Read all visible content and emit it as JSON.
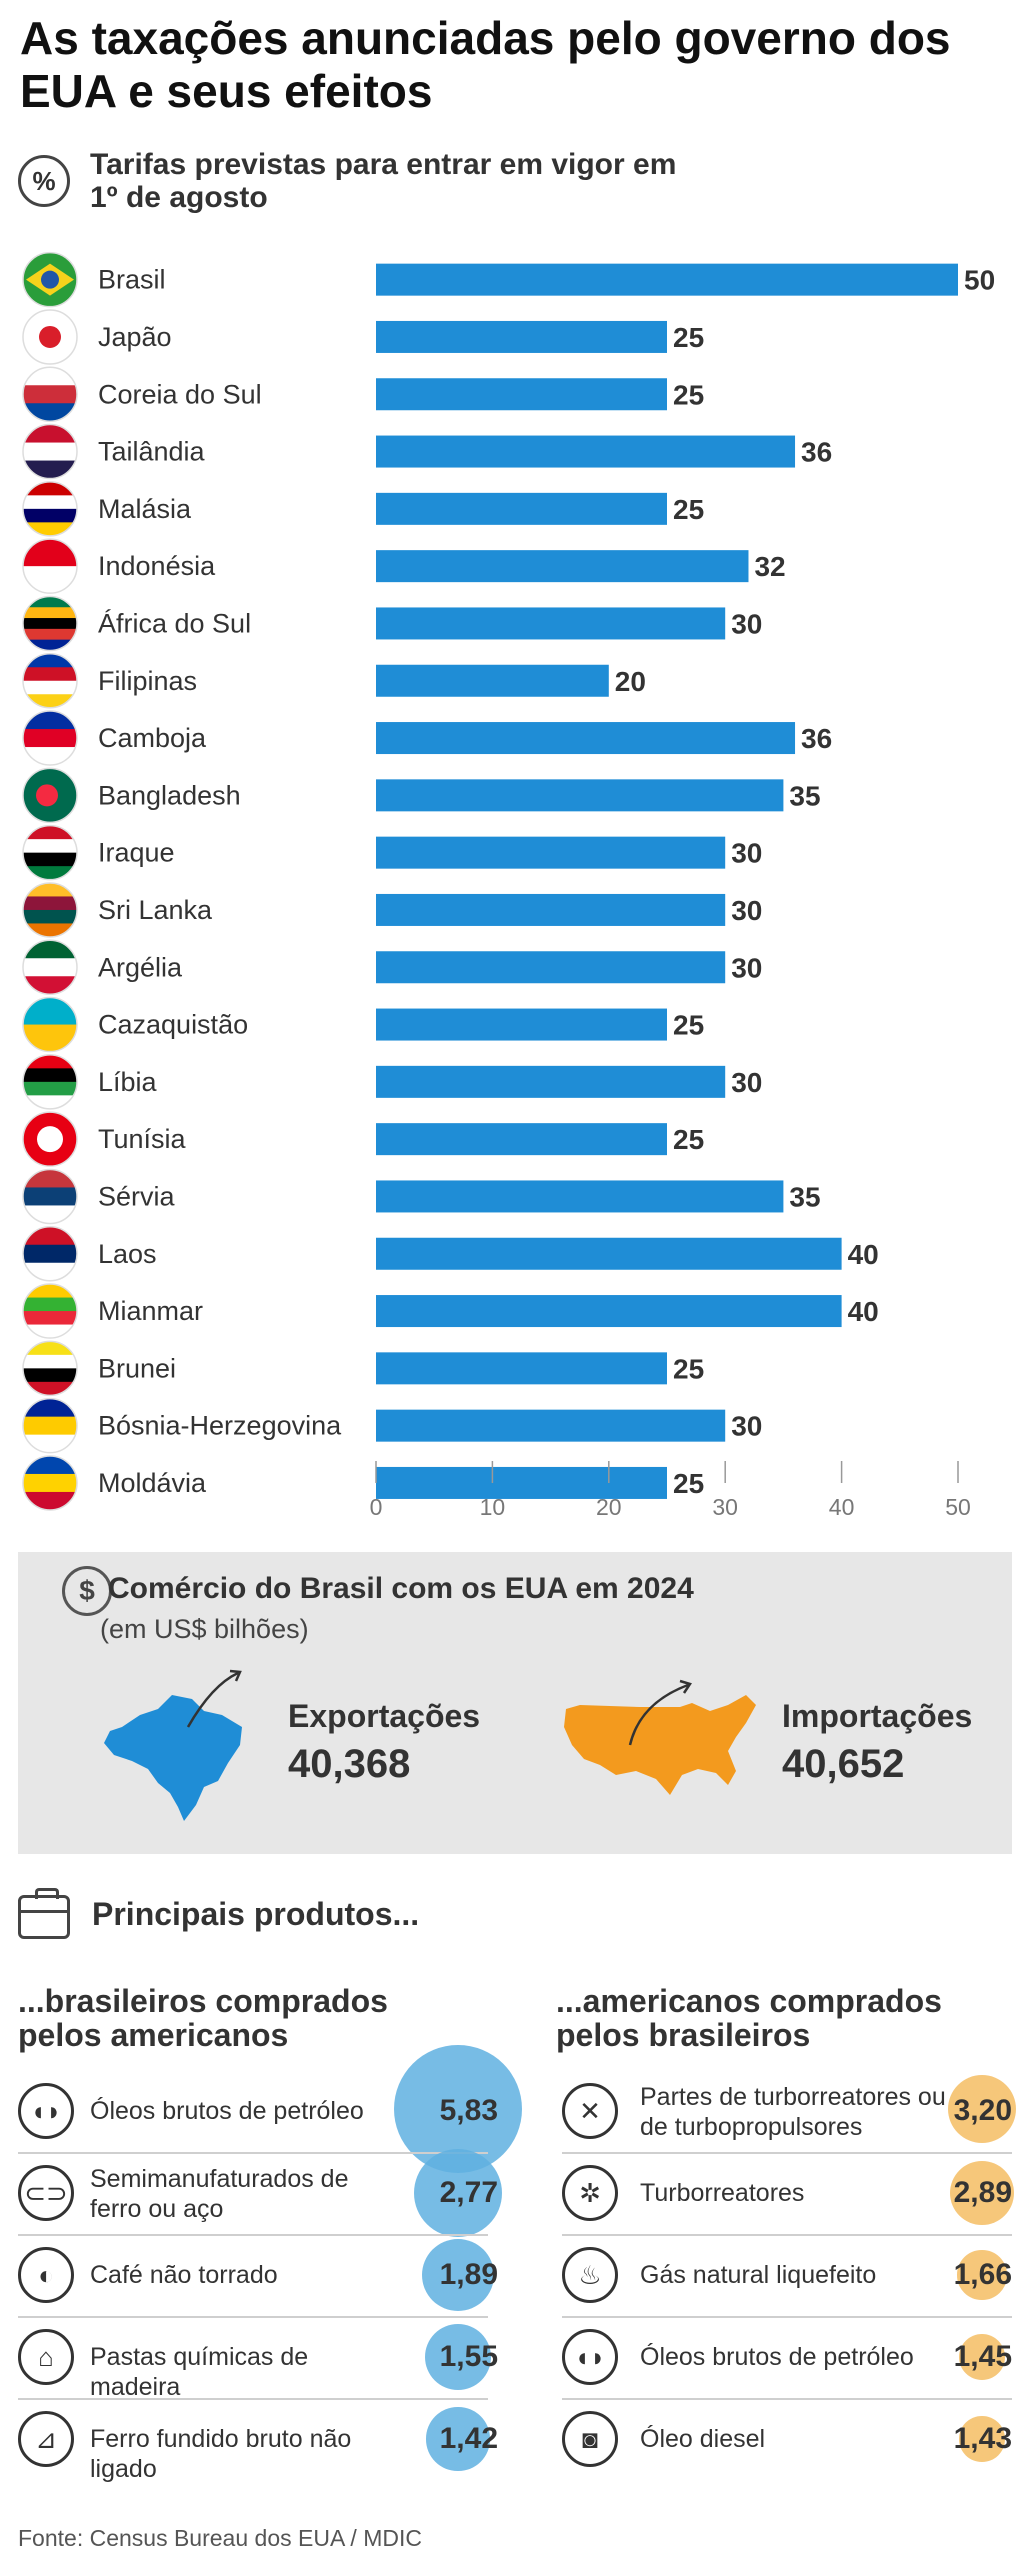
{
  "title": "As taxações anunciadas pelo governo dos EUA e seus efeitos",
  "tariffs": {
    "subtitle": "Tarifas previstas para entrar em vigor em 1º de agosto",
    "icon": "percent-icon"
  },
  "chart_data": {
    "type": "bar",
    "orientation": "horizontal",
    "categories": [
      "Brasil",
      "Japão",
      "Coreia do Sul",
      "Tailândia",
      "Malásia",
      "Indonésia",
      "África do Sul",
      "Filipinas",
      "Camboja",
      "Bangladesh",
      "Iraque",
      "Sri Lanka",
      "Argélia",
      "Cazaquistão",
      "Líbia",
      "Tunísia",
      "Sérvia",
      "Laos",
      "Mianmar",
      "Brunei",
      "Bósnia-Herzegovina",
      "Moldávia"
    ],
    "values": [
      50,
      25,
      25,
      36,
      25,
      32,
      30,
      20,
      36,
      35,
      30,
      30,
      30,
      25,
      30,
      25,
      35,
      40,
      40,
      25,
      30,
      25
    ],
    "xlim": [
      0,
      50
    ],
    "xticks": [
      0,
      10,
      20,
      30,
      40,
      50
    ],
    "bar_color": "#1f8dd6",
    "grid": false
  },
  "flags": {
    "Brasil": [
      "#2a9d3a",
      "#f6d21c",
      "#2156a8"
    ],
    "Japão": [
      "#ffffff",
      "#d91e2a"
    ],
    "Coreia do Sul": [
      "#ffffff",
      "#cd2e3a",
      "#0047a0"
    ],
    "Tailândia": [
      "#c8102e",
      "#ffffff",
      "#241d4f"
    ],
    "Malásia": [
      "#cc0001",
      "#ffffff",
      "#010066",
      "#ffcc00"
    ],
    "Indonésia": [
      "#e2001a",
      "#ffffff"
    ],
    "África do Sul": [
      "#007a4d",
      "#ffb612",
      "#000000",
      "#de3831",
      "#002395"
    ],
    "Filipinas": [
      "#0038a8",
      "#ce1126",
      "#ffffff",
      "#fcd116"
    ],
    "Camboja": [
      "#032ea1",
      "#e00025",
      "#ffffff"
    ],
    "Bangladesh": [
      "#006a4e",
      "#f42a41"
    ],
    "Iraque": [
      "#ce1126",
      "#ffffff",
      "#000000",
      "#007a3d"
    ],
    "Sri Lanka": [
      "#ffbe29",
      "#8d153a",
      "#00534e",
      "#eb7400"
    ],
    "Argélia": [
      "#006233",
      "#ffffff",
      "#d21034"
    ],
    "Cazaquistão": [
      "#00afca",
      "#fec50c"
    ],
    "Líbia": [
      "#e70013",
      "#000000",
      "#239e46",
      "#ffffff"
    ],
    "Tunísia": [
      "#e70013",
      "#ffffff"
    ],
    "Sérvia": [
      "#c6363c",
      "#0c4076",
      "#ffffff"
    ],
    "Laos": [
      "#ce1126",
      "#002868",
      "#ffffff"
    ],
    "Mianmar": [
      "#fecb00",
      "#34b233",
      "#ea2839",
      "#ffffff"
    ],
    "Brunei": [
      "#f7e017",
      "#ffffff",
      "#000000",
      "#cf1126"
    ],
    "Bósnia-Herzegovina": [
      "#002395",
      "#fecb00",
      "#ffffff"
    ],
    "Moldávia": [
      "#0046ae",
      "#ffd200",
      "#cc092f"
    ]
  },
  "trade": {
    "icon": "dollar-icon",
    "title": "Comércio do Brasil com os EUA em 2024",
    "unit": "(em US$ bilhões)",
    "exports_label": "Exportações",
    "exports_value": "40,368",
    "imports_label": "Importações",
    "imports_value": "40,652",
    "box_color": "#e7e7e7",
    "brazil_color": "#1f8dd6",
    "usa_color": "#f39a1e"
  },
  "products": {
    "icon": "briefcase-icon",
    "title": "Principais produtos...",
    "brazilian": {
      "heading": "...brasileiros comprados pelos americanos",
      "bubble_color": "#5fb0e0",
      "items": [
        {
          "name": "Óleos brutos de petróleo",
          "value": "5,83",
          "amount": 5.83,
          "icon": "oil-drops-icon"
        },
        {
          "name": "Semimanufaturados de ferro ou aço",
          "value": "2,77",
          "amount": 2.77,
          "icon": "steel-bars-icon"
        },
        {
          "name": "Café não torrado",
          "value": "1,89",
          "amount": 1.89,
          "icon": "coffee-beans-icon"
        },
        {
          "name": "Pastas químicas de madeira",
          "value": "1,55",
          "amount": 1.55,
          "icon": "flask-icon"
        },
        {
          "name": "Ferro fundido bruto não ligado",
          "value": "1,42",
          "amount": 1.42,
          "icon": "iron-pour-icon"
        }
      ]
    },
    "american": {
      "heading": "...americanos comprados pelos brasileiros",
      "bubble_color": "#f5bd63",
      "items": [
        {
          "name": "Partes de turborreatores ou de turbopropulsores",
          "value": "3,20",
          "amount": 3.2,
          "icon": "tools-icon"
        },
        {
          "name": "Turborreatores",
          "value": "2,89",
          "amount": 2.89,
          "icon": "gear-icon"
        },
        {
          "name": "Gás natural liquefeito",
          "value": "1,66",
          "amount": 1.66,
          "icon": "flame-icon"
        },
        {
          "name": "Óleos brutos de petróleo",
          "value": "1,45",
          "amount": 1.45,
          "icon": "oil-drops-icon"
        },
        {
          "name": "Óleo diesel",
          "value": "1,43",
          "amount": 1.43,
          "icon": "oil-barrel-icon"
        }
      ]
    }
  },
  "source": "Fonte: Census Bureau dos EUA / MDIC"
}
